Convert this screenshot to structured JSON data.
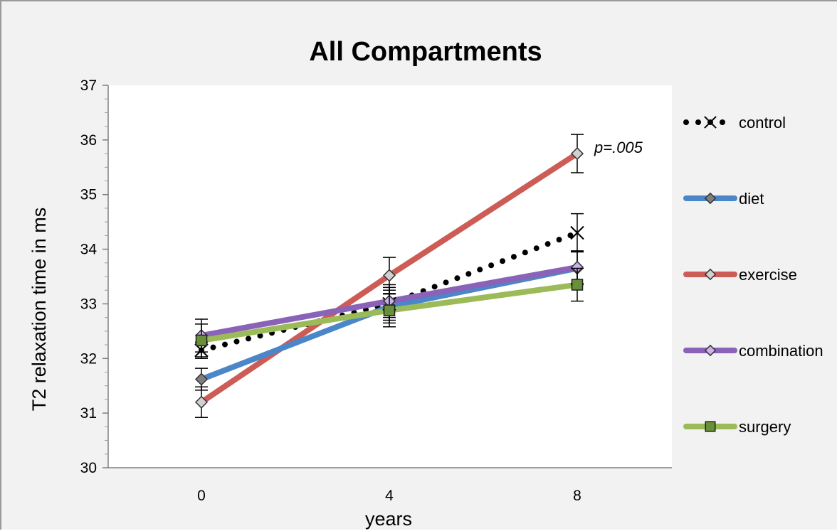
{
  "chart_data": {
    "type": "line",
    "title": "All Compartments",
    "xlabel": "years",
    "ylabel": "T2 relaxation time in ms",
    "x": [
      0,
      4,
      8
    ],
    "x_tick_labels": [
      "0",
      "4",
      "8"
    ],
    "ylim": [
      30,
      37
    ],
    "y_ticks": [
      30,
      31,
      32,
      33,
      34,
      35,
      36,
      37
    ],
    "y_tick_labels": [
      "30",
      "31",
      "32",
      "33",
      "34",
      "35",
      "36",
      "37"
    ],
    "grid": false,
    "legend_position": "right",
    "series": [
      {
        "name": "control",
        "values": [
          32.15,
          33.0,
          34.3
        ],
        "error": [
          0.15,
          0.3,
          0.35
        ],
        "color": "#000000",
        "line_style": "dotted",
        "marker": "x"
      },
      {
        "name": "diet",
        "values": [
          31.62,
          32.95,
          33.65
        ],
        "error": [
          0.2,
          0.3,
          0.3
        ],
        "color": "#4a86c8",
        "line_style": "solid",
        "marker": "diamond",
        "marker_color": "#7f7f7f"
      },
      {
        "name": "exercise",
        "values": [
          31.2,
          33.52,
          35.75
        ],
        "error": [
          0.28,
          0.33,
          0.35
        ],
        "color": "#cc5c55",
        "line_style": "solid",
        "marker": "diamond",
        "marker_color": "#d0d0d0"
      },
      {
        "name": "combination",
        "values": [
          32.42,
          33.05,
          33.67
        ],
        "error": [
          0.3,
          0.3,
          0.3
        ],
        "color": "#8a62b8",
        "line_style": "solid",
        "marker": "diamond",
        "marker_color": "#c9b3e6"
      },
      {
        "name": "surgery",
        "values": [
          32.33,
          32.88,
          33.35
        ],
        "error": [
          0.3,
          0.3,
          0.3
        ],
        "color": "#9bbb59",
        "line_style": "solid",
        "marker": "square",
        "marker_color": "#6a8f3a"
      }
    ],
    "annotations": [
      {
        "text": "p=.005",
        "series": "exercise",
        "x": 8
      }
    ]
  }
}
